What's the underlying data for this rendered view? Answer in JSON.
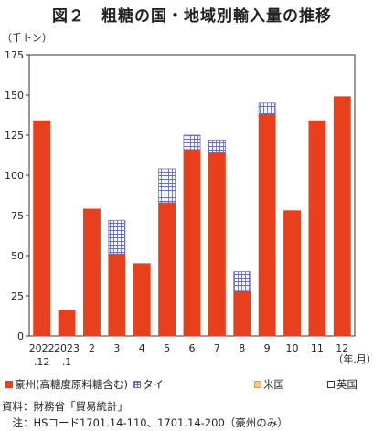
{
  "title": "図２　粗糖の国・地域別輸入量の推移",
  "unit_label": "（千トン）",
  "x_unit_label": "（年.月）",
  "colors": {
    "australia": "#e8401c",
    "thailand_line": "#6a6fc0",
    "usa": "#f3c68a",
    "uk": "#ffffff"
  },
  "legend": [
    {
      "label": "豪州(高糖度原料糖含む)",
      "key": "australia"
    },
    {
      "label": "タイ",
      "key": "thailand"
    },
    {
      "label": "米国",
      "key": "usa"
    },
    {
      "label": "英国",
      "key": "uk"
    }
  ],
  "chart_data": {
    "type": "bar",
    "stacked": true,
    "ylim": [
      0,
      175
    ],
    "yticks": [
      0,
      25,
      50,
      75,
      100,
      125,
      150,
      175
    ],
    "categories": [
      {
        "line1": "2022",
        "line2": ".12"
      },
      {
        "line1": "2023",
        "line2": ".1"
      },
      {
        "line1": "2",
        "line2": ""
      },
      {
        "line1": "3",
        "line2": ""
      },
      {
        "line1": "4",
        "line2": ""
      },
      {
        "line1": "5",
        "line2": ""
      },
      {
        "line1": "6",
        "line2": ""
      },
      {
        "line1": "7",
        "line2": ""
      },
      {
        "line1": "8",
        "line2": ""
      },
      {
        "line1": "9",
        "line2": ""
      },
      {
        "line1": "10",
        "line2": ""
      },
      {
        "line1": "11",
        "line2": ""
      },
      {
        "line1": "12",
        "line2": ""
      }
    ],
    "series": [
      {
        "name": "豪州(高糖度原料糖含む)",
        "key": "australia",
        "values": [
          134,
          16,
          79,
          51,
          45,
          83,
          116,
          114,
          28,
          138,
          78,
          134,
          149
        ]
      },
      {
        "name": "タイ",
        "key": "thailand",
        "values": [
          0,
          0,
          0,
          21,
          0,
          21,
          9,
          8,
          12,
          7,
          0,
          0,
          0
        ]
      },
      {
        "name": "米国",
        "key": "usa",
        "values": [
          0,
          0,
          0,
          0,
          0,
          0,
          0,
          0,
          0,
          0,
          0,
          0,
          0
        ]
      },
      {
        "name": "英国",
        "key": "uk",
        "values": [
          0,
          0,
          0,
          0,
          0,
          0,
          0,
          0,
          0,
          0,
          0,
          0,
          0
        ]
      }
    ]
  },
  "footnotes": {
    "source": "資料：財務省「貿易統計」",
    "note": "　注：HSコード1701.14-110、1701.14-200（豪州のみ）"
  }
}
